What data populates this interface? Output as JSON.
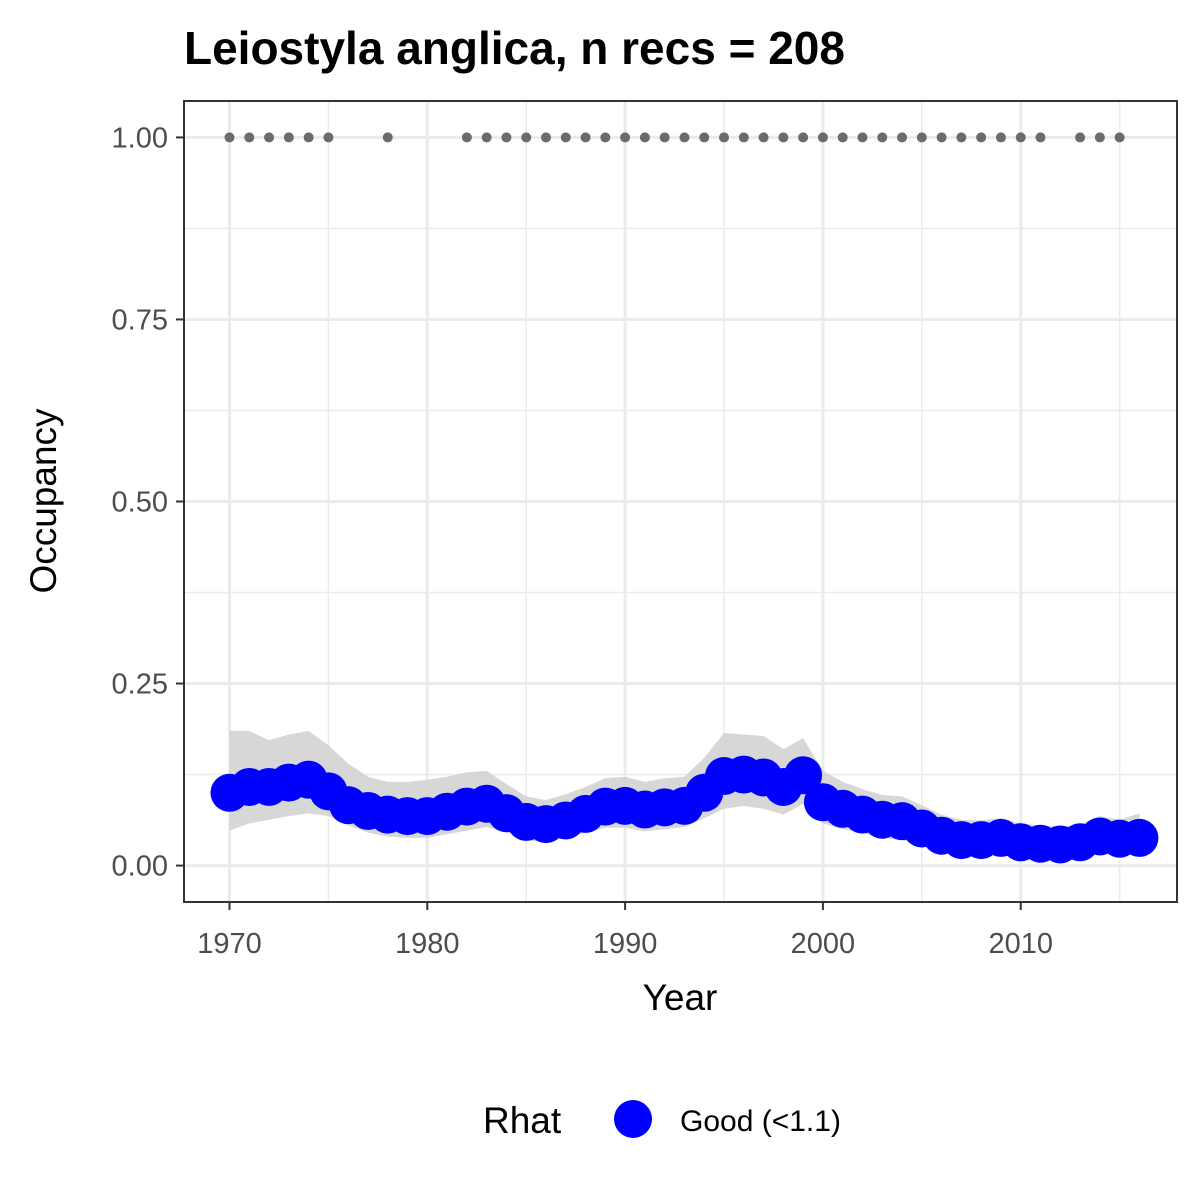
{
  "chart_data": {
    "type": "line",
    "title": "Leiostyla anglica, n recs = 208",
    "xlabel": "Year",
    "ylabel": "Occupancy",
    "xlim": [
      1967.7,
      2017.9
    ],
    "ylim": [
      -0.05,
      1.05
    ],
    "x_ticks": [
      1970,
      1980,
      1990,
      2000,
      2010
    ],
    "x_tick_labels": [
      "1970",
      "1980",
      "1990",
      "2000",
      "2010"
    ],
    "y_ticks": [
      0,
      0.25,
      0.5,
      0.75,
      1.0
    ],
    "y_tick_labels": [
      "0.00",
      "0.25",
      "0.50",
      "0.75",
      "1.00"
    ],
    "grid": true,
    "legend": {
      "title": "Rhat",
      "position": "bottom",
      "entries": [
        "Good (<1.1)"
      ]
    },
    "colors": {
      "points": "#0000ff",
      "ribbon": "#d3d3d3",
      "records": "#6b6b6b",
      "grid": "#ebebeb",
      "border": "#333333"
    },
    "series": [
      {
        "name": "Good (<1.1)",
        "x": [
          1970,
          1971,
          1972,
          1973,
          1974,
          1975,
          1976,
          1977,
          1978,
          1979,
          1980,
          1981,
          1982,
          1983,
          1984,
          1985,
          1986,
          1987,
          1988,
          1989,
          1990,
          1991,
          1992,
          1993,
          1994,
          1995,
          1996,
          1997,
          1998,
          1999,
          2000,
          2001,
          2002,
          2003,
          2004,
          2005,
          2006,
          2007,
          2008,
          2009,
          2010,
          2011,
          2012,
          2013,
          2014,
          2015,
          2016
        ],
        "y": [
          0.1,
          0.108,
          0.108,
          0.114,
          0.118,
          0.102,
          0.083,
          0.075,
          0.07,
          0.068,
          0.068,
          0.074,
          0.081,
          0.085,
          0.072,
          0.06,
          0.057,
          0.062,
          0.071,
          0.081,
          0.082,
          0.077,
          0.08,
          0.082,
          0.1,
          0.123,
          0.125,
          0.121,
          0.108,
          0.124,
          0.087,
          0.078,
          0.07,
          0.063,
          0.061,
          0.051,
          0.041,
          0.035,
          0.035,
          0.038,
          0.032,
          0.03,
          0.029,
          0.032,
          0.04,
          0.037,
          0.038
        ],
        "lower": [
          0.048,
          0.058,
          0.063,
          0.068,
          0.072,
          0.068,
          0.055,
          0.045,
          0.04,
          0.038,
          0.038,
          0.043,
          0.048,
          0.053,
          0.045,
          0.035,
          0.032,
          0.038,
          0.045,
          0.052,
          0.052,
          0.047,
          0.05,
          0.053,
          0.065,
          0.078,
          0.082,
          0.078,
          0.07,
          0.085,
          0.058,
          0.05,
          0.045,
          0.038,
          0.035,
          0.028,
          0.02,
          0.016,
          0.016,
          0.018,
          0.014,
          0.012,
          0.012,
          0.013,
          0.018,
          0.017,
          0.018
        ],
        "upper": [
          0.185,
          0.185,
          0.172,
          0.18,
          0.185,
          0.165,
          0.14,
          0.122,
          0.115,
          0.115,
          0.118,
          0.122,
          0.128,
          0.13,
          0.112,
          0.095,
          0.09,
          0.098,
          0.108,
          0.12,
          0.122,
          0.115,
          0.12,
          0.122,
          0.148,
          0.182,
          0.18,
          0.178,
          0.16,
          0.175,
          0.13,
          0.115,
          0.105,
          0.097,
          0.095,
          0.083,
          0.07,
          0.063,
          0.062,
          0.065,
          0.058,
          0.055,
          0.053,
          0.057,
          0.068,
          0.063,
          0.072
        ]
      }
    ],
    "records": {
      "y": 1,
      "x": [
        1970,
        1971,
        1972,
        1973,
        1974,
        1975,
        1978,
        1982,
        1983,
        1984,
        1985,
        1986,
        1987,
        1988,
        1989,
        1990,
        1991,
        1992,
        1993,
        1994,
        1995,
        1996,
        1997,
        1998,
        1999,
        2000,
        2001,
        2002,
        2003,
        2004,
        2005,
        2006,
        2007,
        2008,
        2009,
        2010,
        2011,
        2013,
        2014,
        2015
      ]
    }
  }
}
